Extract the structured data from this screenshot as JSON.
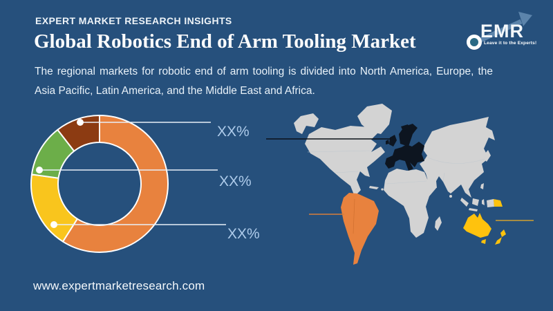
{
  "header": {
    "brand": "EXPERT MARKET RESEARCH INSIGHTS",
    "logo": {
      "text": "EMR",
      "tagline": "Leave it to the Experts!"
    }
  },
  "title": "Global Robotics End of Arm Tooling Market",
  "description": {
    "line1": "The regional markets for robotic end of arm tooling is divided into North America, Europe, the",
    "line2": "Asia Pacific, Latin America, and the Middle East and Africa."
  },
  "footer": {
    "website": "www.expertmarketresearch.com"
  },
  "chart_data": {
    "type": "donut",
    "title": "Regional market share (values shown as placeholders)",
    "legend_position": "none",
    "segments": [
      {
        "name": "orange-segment",
        "color": "#E8823E",
        "value_pct": 59.0,
        "label": ""
      },
      {
        "name": "yellow-segment",
        "color": "#F9C51D",
        "value_pct": 18.2,
        "label": "XX%"
      },
      {
        "name": "green-segment",
        "color": "#6CAE49",
        "value_pct": 12.3,
        "label": "XX%"
      },
      {
        "name": "brown-segment",
        "color": "#8C3B12",
        "value_pct": 10.5,
        "label": "XX%"
      }
    ],
    "callouts": [
      {
        "points_to": "brown-segment",
        "label": "XX%"
      },
      {
        "points_to": "green-segment",
        "label": "XX%"
      },
      {
        "points_to": "yellow-segment",
        "label": "XX%"
      }
    ]
  },
  "map": {
    "land_color": "#D3D3D3",
    "ocean_color": "#26507C",
    "highlights": {
      "europe": {
        "name": "Europe",
        "color": "#0D1520"
      },
      "south_america": {
        "name": "Latin America",
        "color": "#E8823E"
      },
      "oceania": {
        "name": "Australia & New Zealand",
        "color": "#FFC20D"
      }
    }
  },
  "colors": {
    "background": "#26507C",
    "title_text": "#FDFDFD",
    "body_text": "#E8F1F8",
    "callout_label": "#AECBEA",
    "callout_line": "#E8F0F8"
  }
}
